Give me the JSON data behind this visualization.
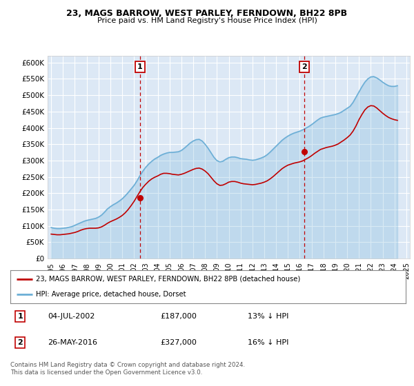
{
  "title": "23, MAGS BARROW, WEST PARLEY, FERNDOWN, BH22 8PB",
  "subtitle": "Price paid vs. HM Land Registry's House Price Index (HPI)",
  "background_color": "#ffffff",
  "plot_bg_color": "#dce8f5",
  "grid_color": "#ffffff",
  "ylim": [
    0,
    620000
  ],
  "yticks": [
    0,
    50000,
    100000,
    150000,
    200000,
    250000,
    300000,
    350000,
    400000,
    450000,
    500000,
    550000,
    600000
  ],
  "ytick_labels": [
    "£0",
    "£50K",
    "£100K",
    "£150K",
    "£200K",
    "£250K",
    "£300K",
    "£350K",
    "£400K",
    "£450K",
    "£500K",
    "£550K",
    "£600K"
  ],
  "hpi_color": "#6baed6",
  "sold_color": "#c00000",
  "marker1_x": 2002.5,
  "marker1_y": 187000,
  "marker2_x": 2016.4,
  "marker2_y": 327000,
  "annotation1": {
    "label": "1",
    "date": "04-JUL-2002",
    "price": "£187,000",
    "pct": "13% ↓ HPI"
  },
  "annotation2": {
    "label": "2",
    "date": "26-MAY-2016",
    "price": "£327,000",
    "pct": "16% ↓ HPI"
  },
  "legend_sold": "23, MAGS BARROW, WEST PARLEY, FERNDOWN, BH22 8PB (detached house)",
  "legend_hpi": "HPI: Average price, detached house, Dorset",
  "footer": "Contains HM Land Registry data © Crown copyright and database right 2024.\nThis data is licensed under the Open Government Licence v3.0.",
  "hpi_data": {
    "years": [
      1995.0,
      1995.25,
      1995.5,
      1995.75,
      1996.0,
      1996.25,
      1996.5,
      1996.75,
      1997.0,
      1997.25,
      1997.5,
      1997.75,
      1998.0,
      1998.25,
      1998.5,
      1998.75,
      1999.0,
      1999.25,
      1999.5,
      1999.75,
      2000.0,
      2000.25,
      2000.5,
      2000.75,
      2001.0,
      2001.25,
      2001.5,
      2001.75,
      2002.0,
      2002.25,
      2002.5,
      2002.75,
      2003.0,
      2003.25,
      2003.5,
      2003.75,
      2004.0,
      2004.25,
      2004.5,
      2004.75,
      2005.0,
      2005.25,
      2005.5,
      2005.75,
      2006.0,
      2006.25,
      2006.5,
      2006.75,
      2007.0,
      2007.25,
      2007.5,
      2007.75,
      2008.0,
      2008.25,
      2008.5,
      2008.75,
      2009.0,
      2009.25,
      2009.5,
      2009.75,
      2010.0,
      2010.25,
      2010.5,
      2010.75,
      2011.0,
      2011.25,
      2011.5,
      2011.75,
      2012.0,
      2012.25,
      2012.5,
      2012.75,
      2013.0,
      2013.25,
      2013.5,
      2013.75,
      2014.0,
      2014.25,
      2014.5,
      2014.75,
      2015.0,
      2015.25,
      2015.5,
      2015.75,
      2016.0,
      2016.25,
      2016.5,
      2016.75,
      2017.0,
      2017.25,
      2017.5,
      2017.75,
      2018.0,
      2018.25,
      2018.5,
      2018.75,
      2019.0,
      2019.25,
      2019.5,
      2019.75,
      2020.0,
      2020.25,
      2020.5,
      2020.75,
      2021.0,
      2021.25,
      2021.5,
      2021.75,
      2022.0,
      2022.25,
      2022.5,
      2022.75,
      2023.0,
      2023.25,
      2023.5,
      2023.75,
      2024.0,
      2024.25
    ],
    "values": [
      95000,
      93000,
      92000,
      92000,
      93000,
      94000,
      96000,
      98000,
      102000,
      106000,
      110000,
      114000,
      117000,
      119000,
      121000,
      123000,
      127000,
      133000,
      142000,
      152000,
      159000,
      165000,
      170000,
      176000,
      183000,
      192000,
      202000,
      213000,
      224000,
      238000,
      254000,
      268000,
      280000,
      290000,
      298000,
      305000,
      310000,
      316000,
      320000,
      323000,
      325000,
      325000,
      326000,
      327000,
      331000,
      338000,
      346000,
      354000,
      360000,
      364000,
      365000,
      360000,
      350000,
      338000,
      324000,
      310000,
      300000,
      296000,
      298000,
      304000,
      309000,
      311000,
      311000,
      309000,
      306000,
      305000,
      304000,
      302000,
      301000,
      302000,
      305000,
      308000,
      312000,
      318000,
      326000,
      335000,
      344000,
      353000,
      362000,
      369000,
      375000,
      380000,
      384000,
      387000,
      390000,
      394000,
      399000,
      404000,
      410000,
      417000,
      424000,
      430000,
      433000,
      435000,
      437000,
      439000,
      441000,
      444000,
      448000,
      454000,
      460000,
      466000,
      478000,
      494000,
      510000,
      526000,
      540000,
      550000,
      556000,
      557000,
      553000,
      547000,
      540000,
      534000,
      529000,
      527000,
      527000,
      529000
    ]
  },
  "sold_data": {
    "years": [
      1995.0,
      1995.25,
      1995.5,
      1995.75,
      1996.0,
      1996.25,
      1996.5,
      1996.75,
      1997.0,
      1997.25,
      1997.5,
      1997.75,
      1998.0,
      1998.25,
      1998.5,
      1998.75,
      1999.0,
      1999.25,
      1999.5,
      1999.75,
      2000.0,
      2000.25,
      2000.5,
      2000.75,
      2001.0,
      2001.25,
      2001.5,
      2001.75,
      2002.0,
      2002.25,
      2002.5,
      2002.75,
      2003.0,
      2003.25,
      2003.5,
      2003.75,
      2004.0,
      2004.25,
      2004.5,
      2004.75,
      2005.0,
      2005.25,
      2005.5,
      2005.75,
      2006.0,
      2006.25,
      2006.5,
      2006.75,
      2007.0,
      2007.25,
      2007.5,
      2007.75,
      2008.0,
      2008.25,
      2008.5,
      2008.75,
      2009.0,
      2009.25,
      2009.5,
      2009.75,
      2010.0,
      2010.25,
      2010.5,
      2010.75,
      2011.0,
      2011.25,
      2011.5,
      2011.75,
      2012.0,
      2012.25,
      2012.5,
      2012.75,
      2013.0,
      2013.25,
      2013.5,
      2013.75,
      2014.0,
      2014.25,
      2014.5,
      2014.75,
      2015.0,
      2015.25,
      2015.5,
      2015.75,
      2016.0,
      2016.25,
      2016.5,
      2016.75,
      2017.0,
      2017.25,
      2017.5,
      2017.75,
      2018.0,
      2018.25,
      2018.5,
      2018.75,
      2019.0,
      2019.25,
      2019.5,
      2019.75,
      2020.0,
      2020.25,
      2020.5,
      2020.75,
      2021.0,
      2021.25,
      2021.5,
      2021.75,
      2022.0,
      2022.25,
      2022.5,
      2022.75,
      2023.0,
      2023.25,
      2023.5,
      2023.75,
      2024.0,
      2024.25
    ],
    "values": [
      75000,
      74000,
      73000,
      73000,
      74000,
      75000,
      76000,
      78000,
      80000,
      83000,
      87000,
      90000,
      92000,
      93000,
      93000,
      93000,
      94000,
      97000,
      102000,
      108000,
      113000,
      117000,
      121000,
      126000,
      132000,
      140000,
      150000,
      162000,
      175000,
      190000,
      205000,
      218000,
      228000,
      237000,
      244000,
      249000,
      253000,
      258000,
      261000,
      261000,
      260000,
      258000,
      257000,
      256000,
      258000,
      261000,
      265000,
      269000,
      273000,
      276000,
      277000,
      274000,
      268000,
      260000,
      249000,
      238000,
      229000,
      224000,
      225000,
      229000,
      234000,
      236000,
      236000,
      234000,
      231000,
      229000,
      228000,
      227000,
      226000,
      227000,
      229000,
      231000,
      234000,
      238000,
      244000,
      251000,
      259000,
      267000,
      275000,
      281000,
      286000,
      289000,
      292000,
      294000,
      296000,
      299000,
      304000,
      309000,
      315000,
      322000,
      328000,
      334000,
      337000,
      340000,
      342000,
      344000,
      347000,
      351000,
      357000,
      363000,
      370000,
      378000,
      390000,
      406000,
      425000,
      441000,
      455000,
      464000,
      468000,
      467000,
      461000,
      453000,
      445000,
      438000,
      432000,
      428000,
      425000,
      423000
    ]
  },
  "xlim": [
    1994.7,
    2025.3
  ],
  "xticks": [
    1995,
    1996,
    1997,
    1998,
    1999,
    2000,
    2001,
    2002,
    2003,
    2004,
    2005,
    2006,
    2007,
    2008,
    2009,
    2010,
    2011,
    2012,
    2013,
    2014,
    2015,
    2016,
    2017,
    2018,
    2019,
    2020,
    2021,
    2022,
    2023,
    2024,
    2025
  ]
}
